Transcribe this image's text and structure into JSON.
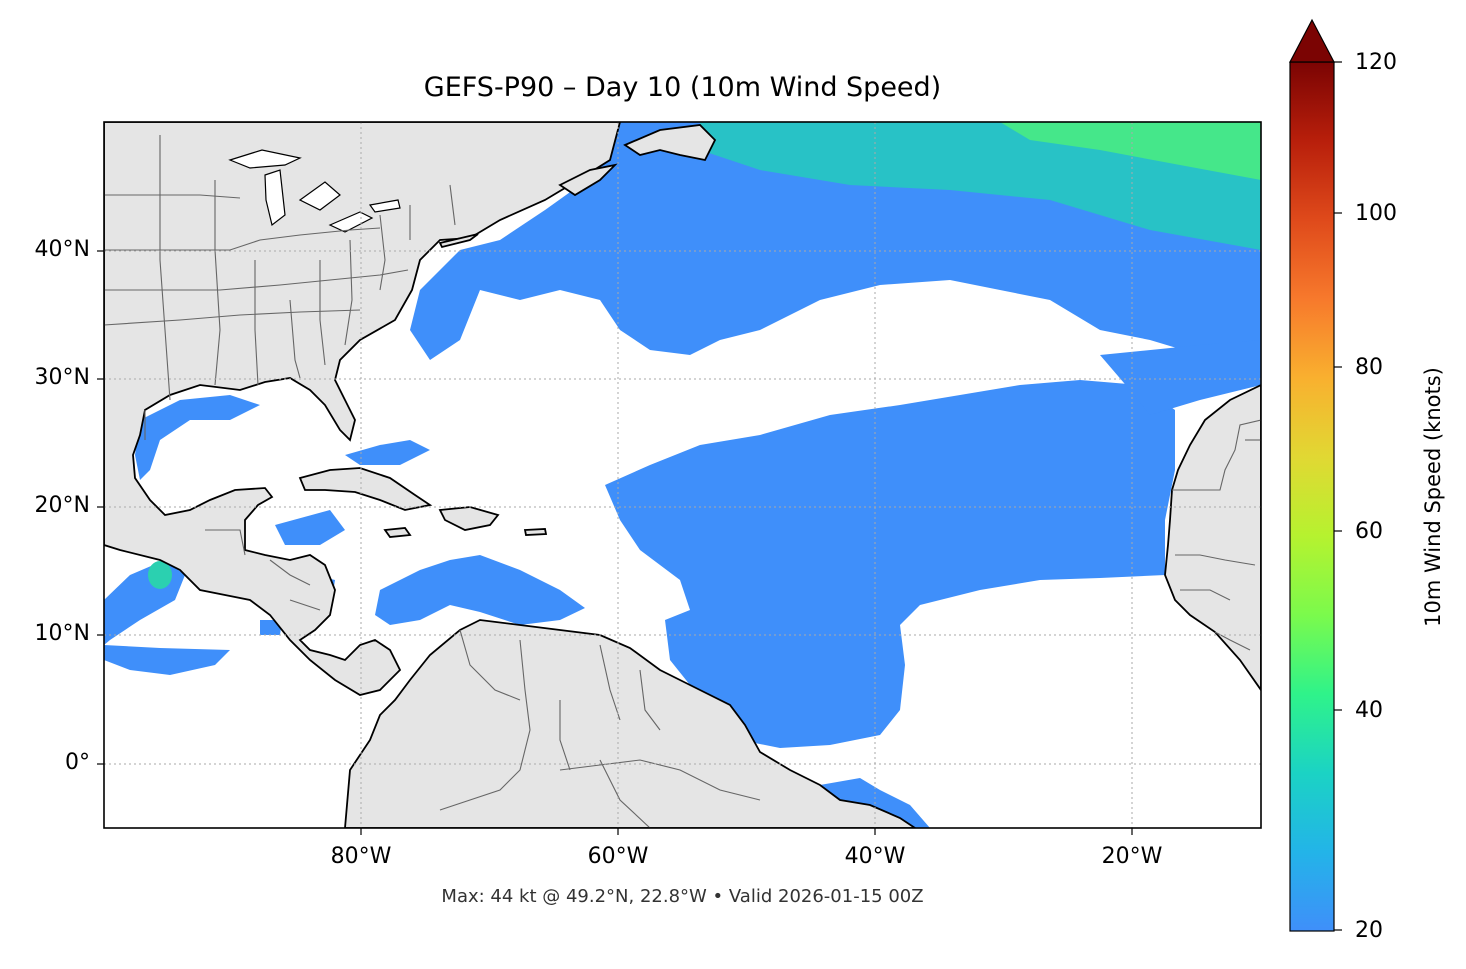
{
  "title": "GEFS-P90 – Day 10 (10m Wind Speed)",
  "footer": "Max: 44 kt @ 49.2°N, 22.8°W • Valid 2026-01-15 00Z",
  "map": {
    "lon_range": [
      -100,
      -10
    ],
    "lat_range": [
      -5,
      50
    ],
    "land_color": "#e5e5e5",
    "gridlines": true,
    "lat_ticks": [
      {
        "value": 40,
        "label": "40°N"
      },
      {
        "value": 30,
        "label": "30°N"
      },
      {
        "value": 20,
        "label": "20°N"
      },
      {
        "value": 10,
        "label": "10°N"
      },
      {
        "value": 0,
        "label": "0°"
      }
    ],
    "lon_ticks": [
      {
        "value": -80,
        "label": "80°W"
      },
      {
        "value": -60,
        "label": "60°W"
      },
      {
        "value": -40,
        "label": "40°W"
      },
      {
        "value": -20,
        "label": "20°W"
      }
    ]
  },
  "colorbar": {
    "label": "10m Wind Speed (knots)",
    "range": [
      20,
      120
    ],
    "extend": "max",
    "ticks": [
      {
        "value": 120,
        "label": "120"
      },
      {
        "value": 100,
        "label": "100"
      },
      {
        "value": 80,
        "label": "80"
      },
      {
        "value": 60,
        "label": "60"
      },
      {
        "value": 40,
        "label": "40"
      },
      {
        "value": 20,
        "label": "20"
      }
    ],
    "colors": [
      "#3f8ffa",
      "#23b4e8",
      "#1bd3c4",
      "#2ff38a",
      "#7bfa4c",
      "#b6f22f",
      "#e1d833",
      "#f9b02f",
      "#f7792c",
      "#df4a1b",
      "#b81f0b",
      "#7b0403"
    ]
  }
}
